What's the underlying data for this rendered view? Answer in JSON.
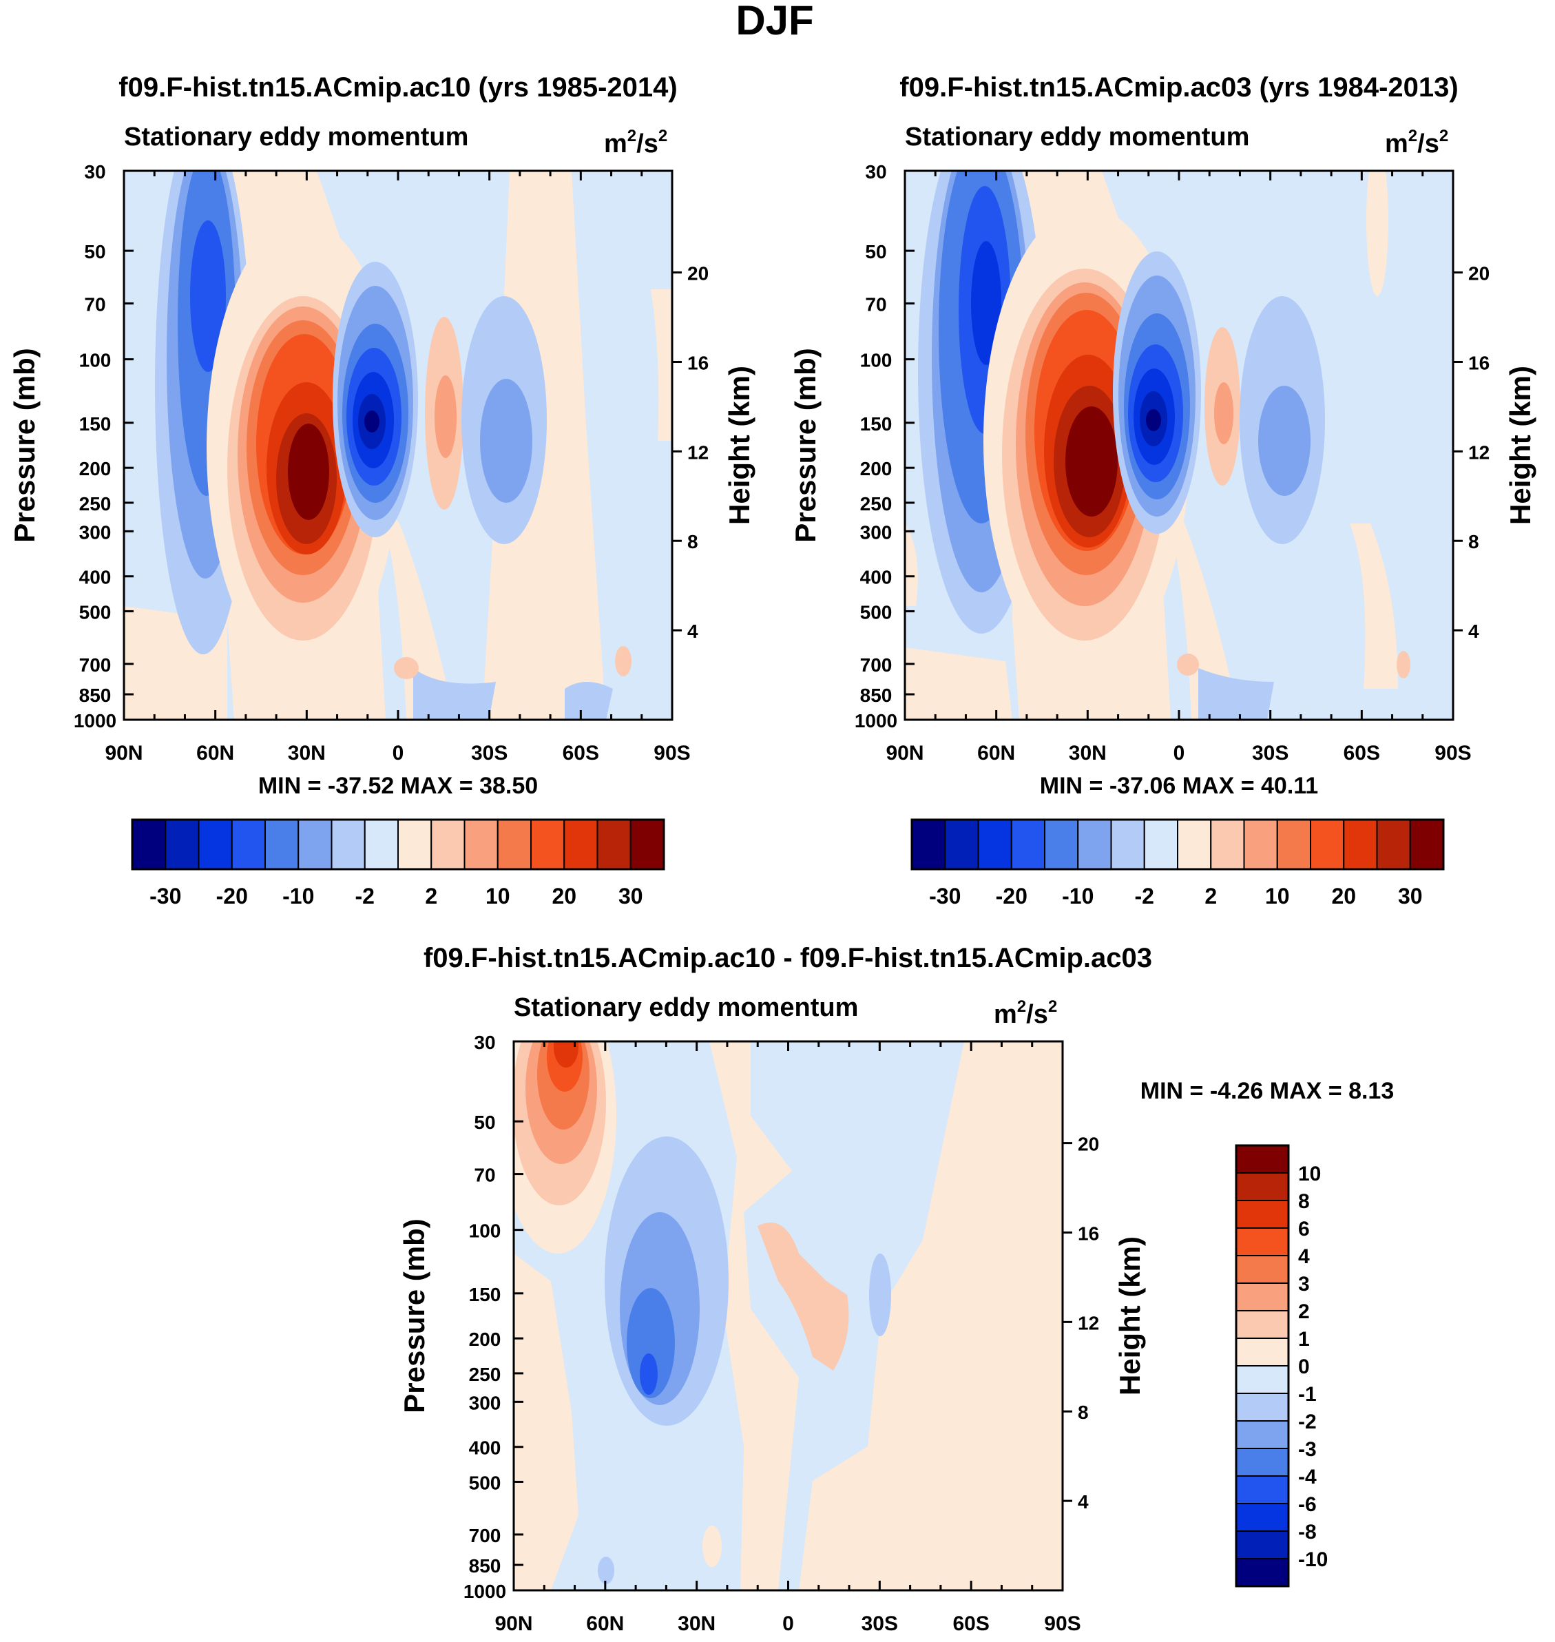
{
  "figure_title": "DJF",
  "chart_data": [
    {
      "type": "heatmap",
      "id": "p1",
      "title": "f09.F-hist.tn15.ACmip.ac10 (yrs 1985-2014)",
      "subtitle": "Stationary eddy momentum",
      "units": "m²/s²",
      "units_base": "m",
      "units_exp": "2",
      "units_mid": "/s",
      "ylabel": "Pressure (mb)",
      "ylabel2": "Height (km)",
      "x_ticks": [
        "90N",
        "60N",
        "30N",
        "0",
        "30S",
        "60S",
        "90S"
      ],
      "y_ticks": [
        "30",
        "50",
        "70",
        "100",
        "150",
        "200",
        "250",
        "300",
        "400",
        "500",
        "700",
        "850",
        "1000"
      ],
      "y2_ticks": [
        "20",
        "16",
        "12",
        "8",
        "4"
      ],
      "stats": "MIN = -37.52  MAX =  38.50",
      "colorbar_labels": [
        "-30",
        "-20",
        "-10",
        "-2",
        "2",
        "10",
        "20",
        "30"
      ],
      "features": [
        {
          "lat": 60,
          "p": 70,
          "value": -12
        },
        {
          "lat": 28,
          "p": 220,
          "value": 38.5
        },
        {
          "lat": -8,
          "p": 150,
          "value": -37.52
        },
        {
          "lat": -16,
          "p": 150,
          "value": 6
        },
        {
          "lat": -30,
          "p": 150,
          "value": -6
        }
      ]
    },
    {
      "type": "heatmap",
      "id": "p2",
      "title": "f09.F-hist.tn15.ACmip.ac03 (yrs 1984-2013)",
      "subtitle": "Stationary eddy momentum",
      "units": "m²/s²",
      "units_base": "m",
      "units_exp": "2",
      "units_mid": "/s",
      "ylabel": "Pressure (mb)",
      "ylabel2": "Height (km)",
      "x_ticks": [
        "90N",
        "60N",
        "30N",
        "0",
        "30S",
        "60S",
        "90S"
      ],
      "y_ticks": [
        "30",
        "50",
        "70",
        "100",
        "150",
        "200",
        "250",
        "300",
        "400",
        "500",
        "700",
        "850",
        "1000"
      ],
      "y2_ticks": [
        "20",
        "16",
        "12",
        "8",
        "4"
      ],
      "stats": "MIN = -37.06  MAX =  40.11",
      "colorbar_labels": [
        "-30",
        "-20",
        "-10",
        "-2",
        "2",
        "10",
        "20",
        "30"
      ],
      "features": [
        {
          "lat": 62,
          "p": 70,
          "value": -14
        },
        {
          "lat": 30,
          "p": 220,
          "value": 40.11
        },
        {
          "lat": -8,
          "p": 150,
          "value": -37.06
        },
        {
          "lat": -18,
          "p": 150,
          "value": 5
        },
        {
          "lat": -31,
          "p": 170,
          "value": -6
        }
      ]
    },
    {
      "type": "heatmap",
      "id": "p3",
      "title": "f09.F-hist.tn15.ACmip.ac10 - f09.F-hist.tn15.ACmip.ac03",
      "subtitle": "Stationary eddy momentum",
      "units": "m²/s²",
      "units_base": "m",
      "units_exp": "2",
      "units_mid": "/s",
      "ylabel": "Pressure (mb)",
      "ylabel2": "Height (km)",
      "x_ticks": [
        "90N",
        "60N",
        "30N",
        "0",
        "30S",
        "60S",
        "90S"
      ],
      "y_ticks": [
        "30",
        "50",
        "70",
        "100",
        "150",
        "200",
        "250",
        "300",
        "400",
        "500",
        "700",
        "850",
        "1000"
      ],
      "y2_ticks": [
        "20",
        "16",
        "12",
        "8",
        "4"
      ],
      "stats": "MIN =  -4.26  MAX =   8.13",
      "colorbar_labels": [
        "10",
        "8",
        "6",
        "4",
        "3",
        "2",
        "1",
        "0",
        "-1",
        "-2",
        "-3",
        "-4",
        "-6",
        "-8",
        "-10"
      ],
      "features": [
        {
          "lat": 75,
          "p": 40,
          "value": 8.13
        },
        {
          "lat": 45,
          "p": 250,
          "value": -4.26
        },
        {
          "lat": -10,
          "p": 170,
          "value": 2
        },
        {
          "lat": -30,
          "p": 180,
          "value": -1
        }
      ]
    }
  ],
  "colors": {
    "p_levels": [
      "#00007f",
      "#0020b8",
      "#0535e0",
      "#2255f0",
      "#4a7ee8",
      "#7ea4f0",
      "#b3ccf7",
      "#d6e8fa",
      "#fde9d7",
      "#fbc9af",
      "#f9a07e",
      "#f57a4b",
      "#f4531f",
      "#e13609",
      "#b82408",
      "#7f0000"
    ],
    "d_levels": [
      "#7f0000",
      "#b82408",
      "#e13609",
      "#f4531f",
      "#f57a4b",
      "#f9a07e",
      "#fbc9af",
      "#fde9d7",
      "#d6e8fa",
      "#b3ccf7",
      "#7ea4f0",
      "#4a7ee8",
      "#2255f0",
      "#0535e0",
      "#0020b8",
      "#00007f"
    ]
  }
}
